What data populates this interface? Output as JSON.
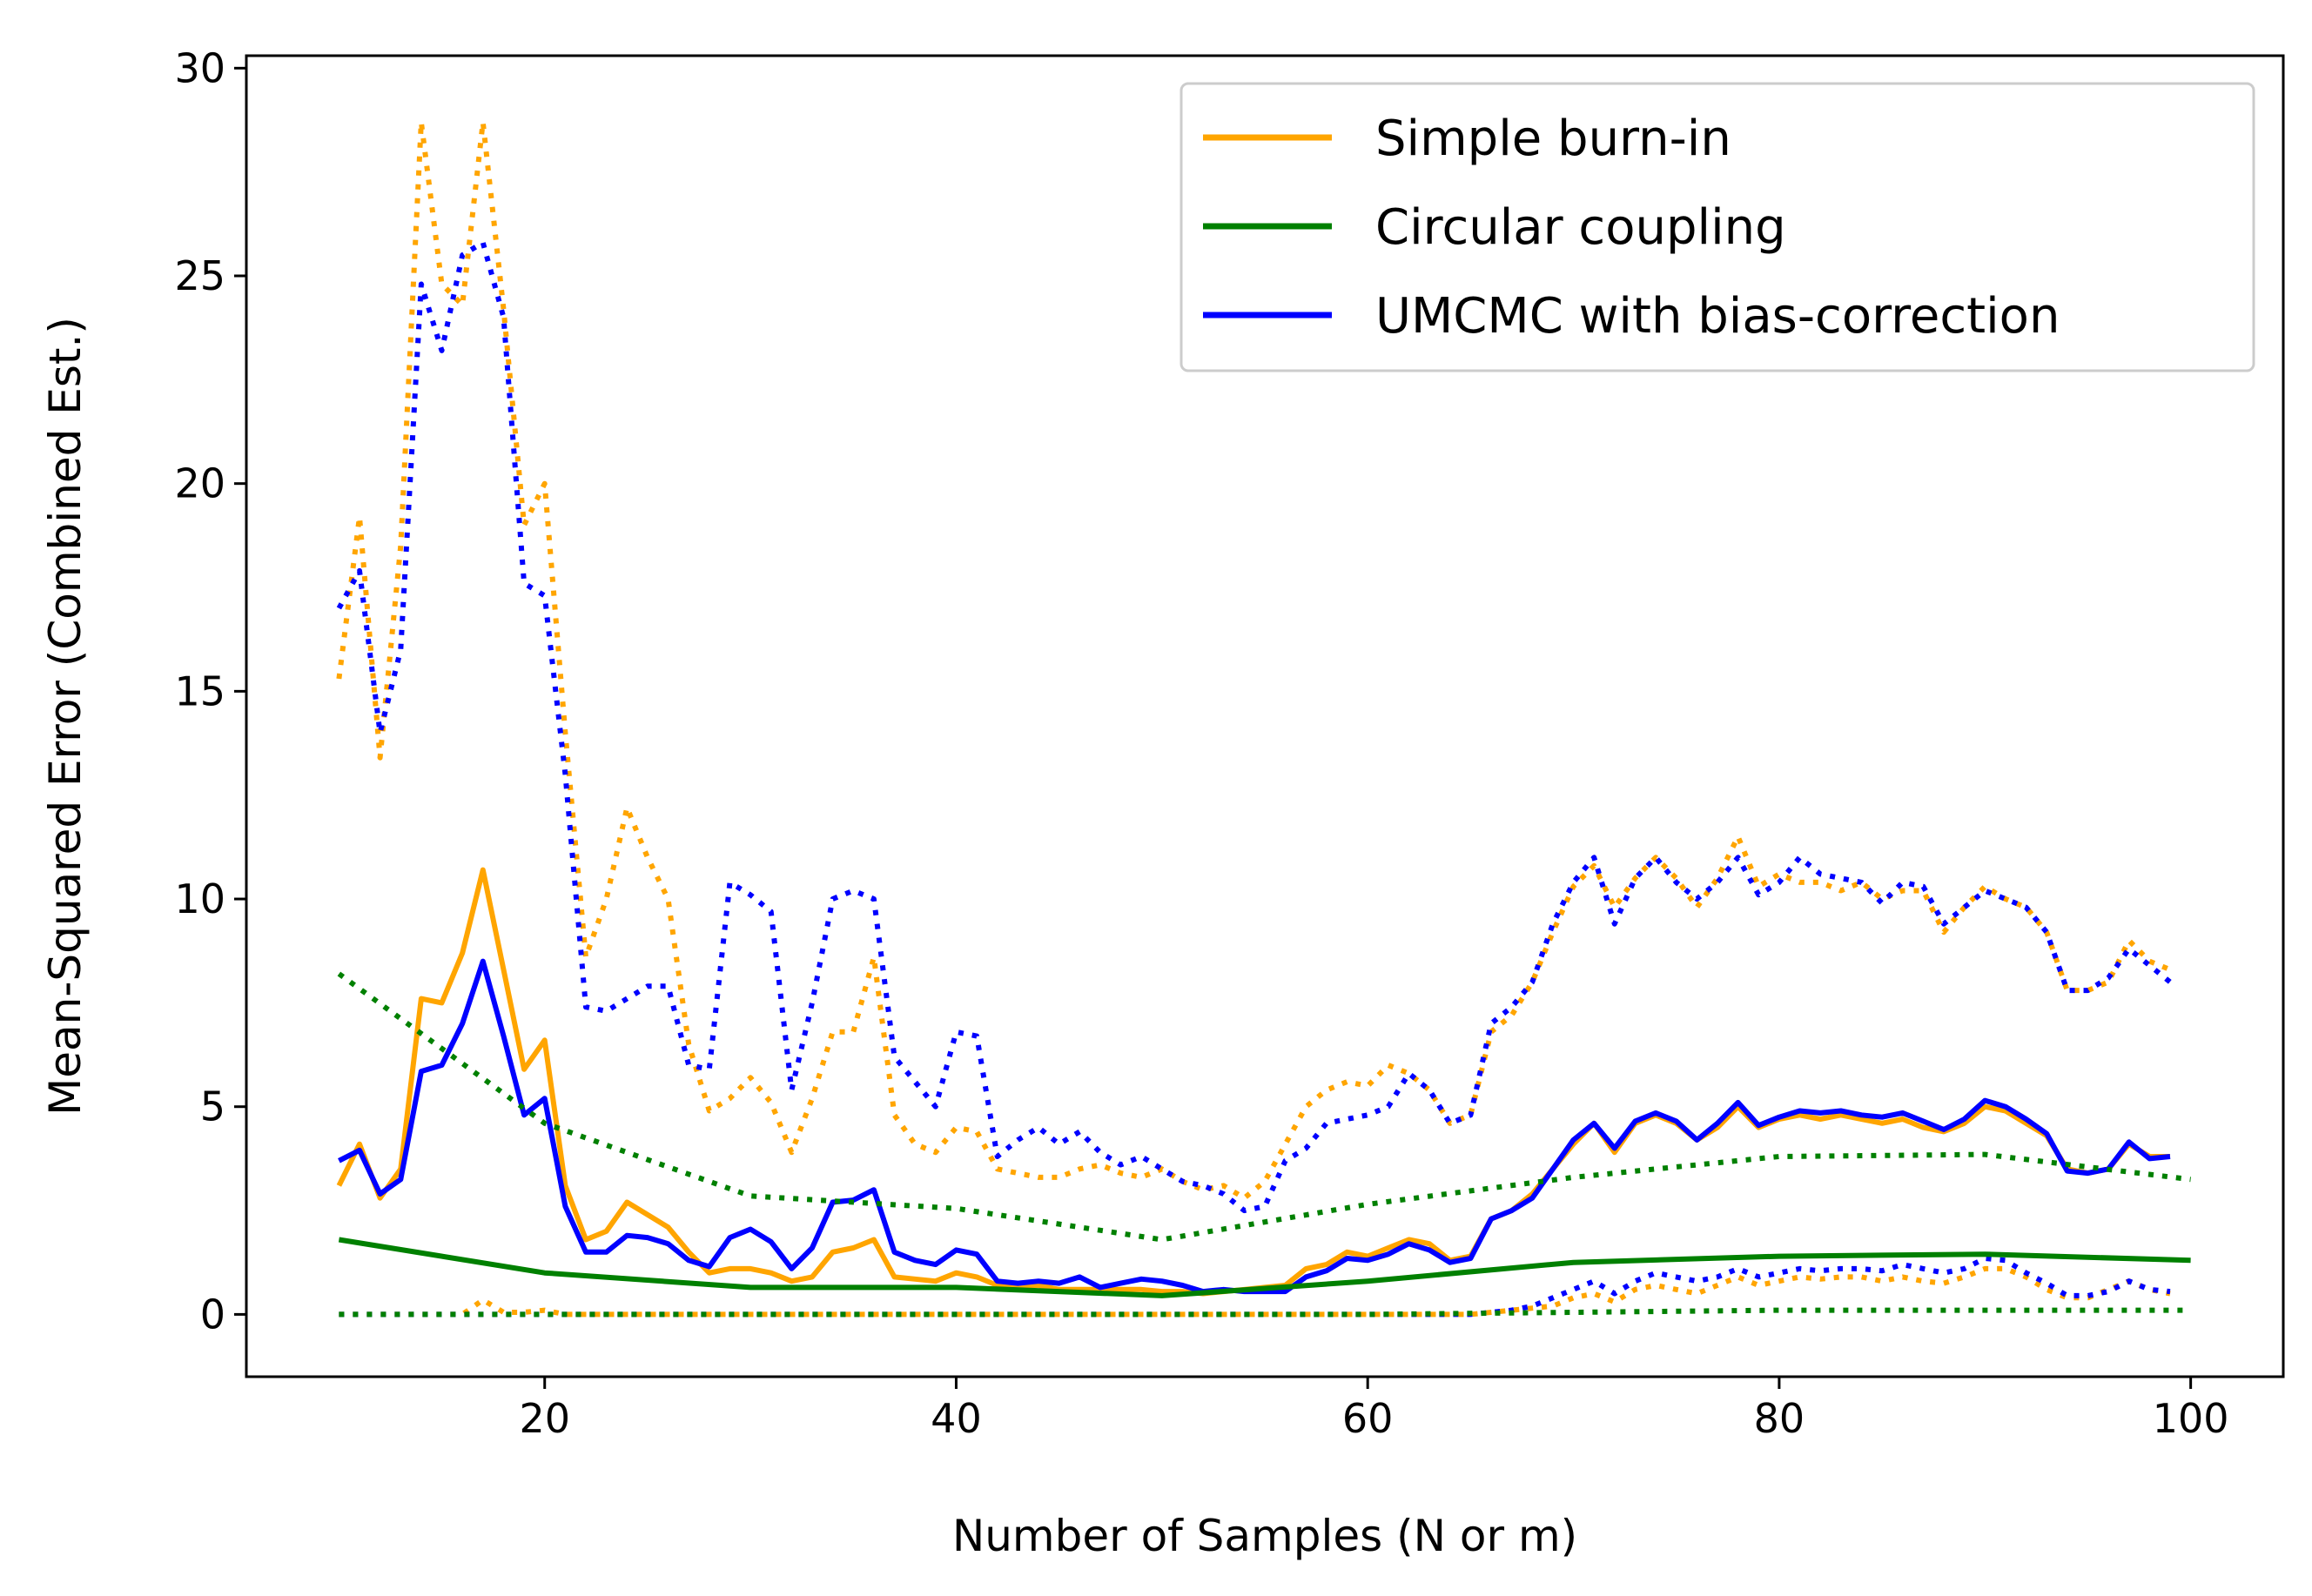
{
  "chart_data": {
    "type": "line",
    "xlabel": "Number of Samples (N or m)",
    "ylabel": "Mean-Squared Error (Combined Est.)",
    "xlim": [
      5.5,
      104.5
    ],
    "ylim": [
      -1.5,
      30.3
    ],
    "xticks": [
      20,
      40,
      60,
      80,
      100
    ],
    "yticks": [
      0,
      5,
      10,
      15,
      20,
      25,
      30
    ],
    "grid": false,
    "legend_position": "top-right",
    "colors": {
      "orange": "#ffa500",
      "green": "#008000",
      "blue": "#0000ff"
    },
    "legend": [
      {
        "label": "Simple burn-in",
        "color": "#ffa500"
      },
      {
        "label": "Circular coupling",
        "color": "#008000"
      },
      {
        "label": "UMCMC with bias-correction",
        "color": "#0000ff"
      }
    ],
    "series": [
      {
        "id": "simple-mean",
        "color": "#ffa500",
        "style": "solid",
        "x": [
          10,
          11,
          12,
          13,
          14,
          15,
          16,
          17,
          18,
          19,
          20,
          21,
          22,
          23,
          24,
          25,
          26,
          27,
          28,
          29,
          30,
          31,
          32,
          33,
          34,
          35,
          36,
          37,
          38,
          39,
          40,
          41,
          42,
          43,
          44,
          45,
          46,
          47,
          48,
          49,
          50,
          51,
          52,
          53,
          54,
          55,
          56,
          57,
          58,
          59,
          60,
          61,
          62,
          63,
          64,
          65,
          66,
          67,
          68,
          69,
          70,
          71,
          72,
          73,
          74,
          75,
          76,
          77,
          78,
          79,
          80,
          81,
          82,
          83,
          84,
          85,
          86,
          87,
          88,
          89,
          90,
          91,
          92,
          93,
          94,
          95,
          96,
          97,
          98,
          99
        ],
        "y": [
          3.1,
          4.1,
          2.8,
          3.5,
          7.6,
          7.5,
          8.7,
          10.7,
          8.3,
          5.9,
          6.6,
          3.1,
          1.8,
          2.0,
          2.7,
          2.4,
          2.1,
          1.5,
          1.0,
          1.1,
          1.1,
          1.0,
          0.8,
          0.9,
          1.5,
          1.6,
          1.8,
          0.9,
          0.85,
          0.8,
          1.0,
          0.9,
          0.7,
          0.7,
          0.7,
          0.6,
          0.6,
          0.6,
          0.6,
          0.6,
          0.55,
          0.55,
          0.5,
          0.55,
          0.6,
          0.65,
          0.7,
          1.1,
          1.2,
          1.5,
          1.4,
          1.6,
          1.8,
          1.7,
          1.3,
          1.4,
          2.3,
          2.5,
          2.9,
          3.5,
          4.1,
          4.6,
          3.9,
          4.6,
          4.8,
          4.6,
          4.2,
          4.5,
          5.0,
          4.5,
          4.7,
          4.8,
          4.7,
          4.8,
          4.7,
          4.6,
          4.7,
          4.5,
          4.4,
          4.6,
          5.0,
          4.9,
          4.6,
          4.3,
          3.5,
          3.4,
          3.5,
          4.1,
          3.8,
          3.8
        ]
      },
      {
        "id": "simple-upper",
        "color": "#ffa500",
        "style": "dotted",
        "x": [
          10,
          11,
          12,
          13,
          14,
          15,
          16,
          17,
          18,
          19,
          20,
          21,
          22,
          23,
          24,
          25,
          26,
          27,
          28,
          29,
          30,
          31,
          32,
          33,
          34,
          35,
          36,
          37,
          38,
          39,
          40,
          41,
          42,
          43,
          44,
          45,
          46,
          47,
          48,
          49,
          50,
          51,
          52,
          53,
          54,
          55,
          56,
          57,
          58,
          59,
          60,
          61,
          62,
          63,
          64,
          65,
          66,
          67,
          68,
          69,
          70,
          71,
          72,
          73,
          74,
          75,
          76,
          77,
          78,
          79,
          80,
          81,
          82,
          83,
          84,
          85,
          86,
          87,
          88,
          89,
          90,
          91,
          92,
          93,
          94,
          95,
          96,
          97,
          98,
          99
        ],
        "y": [
          15.3,
          19.2,
          13.4,
          18.5,
          28.7,
          24.8,
          24.3,
          28.7,
          24.2,
          19.0,
          20.0,
          14.0,
          8.6,
          10.0,
          12.2,
          11.0,
          10.0,
          6.5,
          4.9,
          5.2,
          5.7,
          5.1,
          3.9,
          5.2,
          6.8,
          6.8,
          8.6,
          4.8,
          4.1,
          3.9,
          4.5,
          4.4,
          3.5,
          3.4,
          3.3,
          3.3,
          3.5,
          3.6,
          3.4,
          3.3,
          3.5,
          3.2,
          3.0,
          3.1,
          2.8,
          3.2,
          4.1,
          5.0,
          5.4,
          5.6,
          5.5,
          6.0,
          5.8,
          5.4,
          4.6,
          4.8,
          6.8,
          7.2,
          8.0,
          9.2,
          10.3,
          10.8,
          9.8,
          10.5,
          11.0,
          10.5,
          9.8,
          10.5,
          11.5,
          10.3,
          10.6,
          10.4,
          10.4,
          10.2,
          10.4,
          10.0,
          10.2,
          10.2,
          9.2,
          9.8,
          10.3,
          10.0,
          9.8,
          9.2,
          7.8,
          7.8,
          8.0,
          9.0,
          8.5,
          8.3
        ]
      },
      {
        "id": "simple-lower",
        "color": "#ffa500",
        "style": "dotted",
        "x": [
          10,
          11,
          12,
          13,
          14,
          15,
          16,
          17,
          18,
          19,
          20,
          21,
          22,
          23,
          24,
          25,
          26,
          27,
          28,
          29,
          30,
          31,
          32,
          33,
          34,
          35,
          36,
          37,
          38,
          39,
          40,
          41,
          42,
          43,
          44,
          45,
          46,
          47,
          48,
          49,
          50,
          51,
          52,
          53,
          54,
          55,
          56,
          57,
          58,
          59,
          60,
          61,
          62,
          63,
          64,
          65,
          66,
          67,
          68,
          69,
          70,
          71,
          72,
          73,
          74,
          75,
          76,
          77,
          78,
          79,
          80,
          81,
          82,
          83,
          84,
          85,
          86,
          87,
          88,
          89,
          90,
          91,
          92,
          93,
          94,
          95,
          96,
          97,
          98,
          99
        ],
        "y": [
          0,
          0,
          0,
          0,
          0,
          0,
          0,
          0.35,
          0.05,
          0.05,
          0.1,
          0,
          0,
          0,
          0,
          0,
          0,
          0,
          0,
          0,
          0,
          0,
          0,
          0,
          0,
          0,
          0,
          0,
          0,
          0,
          0,
          0,
          0,
          0,
          0,
          0,
          0,
          0,
          0,
          0,
          0,
          0,
          0,
          0,
          0,
          0,
          0,
          0,
          0,
          0,
          0,
          0,
          0,
          0,
          0,
          0,
          0.05,
          0.1,
          0.15,
          0.2,
          0.4,
          0.5,
          0.3,
          0.6,
          0.7,
          0.6,
          0.5,
          0.7,
          0.9,
          0.7,
          0.8,
          0.9,
          0.85,
          0.9,
          0.9,
          0.8,
          0.9,
          0.8,
          0.75,
          0.9,
          1.1,
          1.1,
          0.9,
          0.6,
          0.4,
          0.4,
          0.6,
          0.8,
          0.6,
          0.5
        ]
      },
      {
        "id": "umcmc-mean",
        "color": "#0000ff",
        "style": "solid",
        "x": [
          10,
          11,
          12,
          13,
          14,
          15,
          16,
          17,
          18,
          19,
          20,
          21,
          22,
          23,
          24,
          25,
          26,
          27,
          28,
          29,
          30,
          31,
          32,
          33,
          34,
          35,
          36,
          37,
          38,
          39,
          40,
          41,
          42,
          43,
          44,
          45,
          46,
          47,
          48,
          49,
          50,
          51,
          52,
          53,
          54,
          55,
          56,
          57,
          58,
          59,
          60,
          61,
          62,
          63,
          64,
          65,
          66,
          67,
          68,
          69,
          70,
          71,
          72,
          73,
          74,
          75,
          76,
          77,
          78,
          79,
          80,
          81,
          82,
          83,
          84,
          85,
          86,
          87,
          88,
          89,
          90,
          91,
          92,
          93,
          94,
          95,
          96,
          97,
          98,
          99
        ],
        "y": [
          3.7,
          3.95,
          2.9,
          3.25,
          5.85,
          6.0,
          7.0,
          8.5,
          6.7,
          4.8,
          5.2,
          2.6,
          1.5,
          1.5,
          1.9,
          1.85,
          1.7,
          1.3,
          1.15,
          1.85,
          2.05,
          1.75,
          1.1,
          1.6,
          2.7,
          2.75,
          3.0,
          1.5,
          1.3,
          1.2,
          1.55,
          1.45,
          0.8,
          0.75,
          0.8,
          0.75,
          0.9,
          0.65,
          0.75,
          0.85,
          0.8,
          0.7,
          0.55,
          0.6,
          0.55,
          0.55,
          0.55,
          0.9,
          1.05,
          1.35,
          1.3,
          1.45,
          1.7,
          1.55,
          1.25,
          1.35,
          2.3,
          2.5,
          2.8,
          3.5,
          4.2,
          4.6,
          4.0,
          4.65,
          4.85,
          4.65,
          4.2,
          4.6,
          5.1,
          4.55,
          4.75,
          4.9,
          4.85,
          4.9,
          4.8,
          4.75,
          4.85,
          4.65,
          4.45,
          4.7,
          5.15,
          5.0,
          4.7,
          4.35,
          3.45,
          3.4,
          3.5,
          4.15,
          3.75,
          3.8
        ]
      },
      {
        "id": "umcmc-upper",
        "color": "#0000ff",
        "style": "dotted",
        "x": [
          10,
          11,
          12,
          13,
          14,
          15,
          16,
          17,
          18,
          19,
          20,
          21,
          22,
          23,
          24,
          25,
          26,
          27,
          28,
          29,
          30,
          31,
          32,
          33,
          34,
          35,
          36,
          37,
          38,
          39,
          40,
          41,
          42,
          43,
          44,
          45,
          46,
          47,
          48,
          49,
          50,
          51,
          52,
          53,
          54,
          55,
          56,
          57,
          58,
          59,
          60,
          61,
          62,
          63,
          64,
          65,
          66,
          67,
          68,
          69,
          70,
          71,
          72,
          73,
          74,
          75,
          76,
          77,
          78,
          79,
          80,
          81,
          82,
          83,
          84,
          85,
          86,
          87,
          88,
          89,
          90,
          91,
          92,
          93,
          94,
          95,
          96,
          97,
          98,
          99
        ],
        "y": [
          17.0,
          17.9,
          14.0,
          16.0,
          24.8,
          23.2,
          25.5,
          25.8,
          24.0,
          17.6,
          17.3,
          13.0,
          7.4,
          7.3,
          7.6,
          7.9,
          7.9,
          6.0,
          5.9,
          10.4,
          10.1,
          9.7,
          5.4,
          7.5,
          10.0,
          10.2,
          10.0,
          6.2,
          5.6,
          5.0,
          6.8,
          6.7,
          3.8,
          4.2,
          4.5,
          4.1,
          4.4,
          3.9,
          3.6,
          3.8,
          3.5,
          3.2,
          3.1,
          2.9,
          2.5,
          2.6,
          3.7,
          4.0,
          4.6,
          4.7,
          4.8,
          5.0,
          5.8,
          5.4,
          4.6,
          4.8,
          7.0,
          7.4,
          8.0,
          9.4,
          10.4,
          11.0,
          9.4,
          10.5,
          11.0,
          10.4,
          10.0,
          10.4,
          11.0,
          10.1,
          10.4,
          11.0,
          10.6,
          10.5,
          10.4,
          9.9,
          10.4,
          10.3,
          9.4,
          9.8,
          10.2,
          10.0,
          9.8,
          9.2,
          7.8,
          7.8,
          8.1,
          8.8,
          8.4,
          8.0
        ]
      },
      {
        "id": "umcmc-lower",
        "color": "#0000ff",
        "style": "dotted",
        "x": [
          10,
          11,
          12,
          13,
          14,
          15,
          16,
          17,
          18,
          19,
          20,
          21,
          22,
          23,
          24,
          25,
          26,
          27,
          28,
          29,
          30,
          31,
          32,
          33,
          34,
          35,
          36,
          37,
          38,
          39,
          40,
          41,
          42,
          43,
          44,
          45,
          46,
          47,
          48,
          49,
          50,
          51,
          52,
          53,
          54,
          55,
          56,
          57,
          58,
          59,
          60,
          61,
          62,
          63,
          64,
          65,
          66,
          67,
          68,
          69,
          70,
          71,
          72,
          73,
          74,
          75,
          76,
          77,
          78,
          79,
          80,
          81,
          82,
          83,
          84,
          85,
          86,
          87,
          88,
          89,
          90,
          91,
          92,
          93,
          94,
          95,
          96,
          97,
          98,
          99
        ],
        "y": [
          0,
          0,
          0,
          0,
          0,
          0,
          0,
          0,
          0,
          0,
          0,
          0,
          0,
          0,
          0,
          0,
          0,
          0,
          0,
          0,
          0,
          0,
          0,
          0,
          0,
          0,
          0,
          0,
          0,
          0,
          0,
          0,
          0,
          0,
          0,
          0,
          0,
          0,
          0,
          0,
          0,
          0,
          0,
          0,
          0,
          0,
          0,
          0,
          0,
          0,
          0,
          0,
          0,
          0,
          0,
          0,
          0.05,
          0.1,
          0.2,
          0.4,
          0.6,
          0.8,
          0.5,
          0.8,
          1.0,
          0.9,
          0.8,
          0.9,
          1.1,
          0.9,
          1.0,
          1.1,
          1.05,
          1.1,
          1.1,
          1.05,
          1.2,
          1.1,
          1.0,
          1.1,
          1.35,
          1.3,
          1.0,
          0.75,
          0.45,
          0.45,
          0.55,
          0.8,
          0.6,
          0.55
        ]
      },
      {
        "id": "circular-mean",
        "color": "#008000",
        "style": "solid",
        "x": [
          10,
          20,
          30,
          40,
          50,
          60,
          70,
          80,
          90,
          100
        ],
        "y": [
          1.8,
          1.0,
          0.65,
          0.65,
          0.45,
          0.8,
          1.25,
          1.4,
          1.45,
          1.3
        ]
      },
      {
        "id": "circular-upper",
        "color": "#008000",
        "style": "dotted",
        "x": [
          10,
          20,
          30,
          40,
          50,
          60,
          70,
          80,
          90,
          100
        ],
        "y": [
          8.2,
          4.6,
          2.85,
          2.55,
          1.8,
          2.65,
          3.3,
          3.8,
          3.85,
          3.25
        ]
      },
      {
        "id": "circular-lower",
        "color": "#008000",
        "style": "dotted",
        "x": [
          10,
          20,
          30,
          40,
          50,
          60,
          70,
          80,
          90,
          100
        ],
        "y": [
          0,
          0,
          0,
          0,
          0,
          0,
          0.05,
          0.1,
          0.1,
          0.1
        ]
      }
    ]
  }
}
